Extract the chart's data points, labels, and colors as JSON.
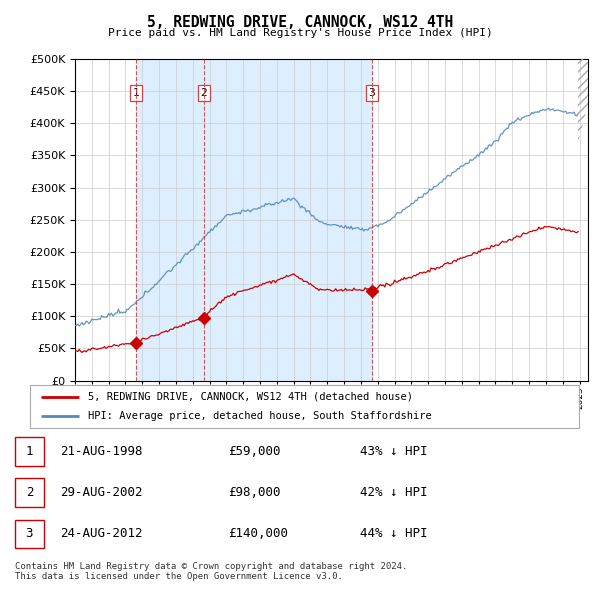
{
  "title": "5, REDWING DRIVE, CANNOCK, WS12 4TH",
  "subtitle": "Price paid vs. HM Land Registry's House Price Index (HPI)",
  "ytick_values": [
    0,
    50000,
    100000,
    150000,
    200000,
    250000,
    300000,
    350000,
    400000,
    450000,
    500000
  ],
  "xlim_start": 1995.0,
  "xlim_end": 2025.5,
  "ylim_min": 0,
  "ylim_max": 500000,
  "sale_dates": [
    1998.645,
    2002.659,
    2012.645
  ],
  "sale_prices": [
    59000,
    98000,
    140000
  ],
  "sale_labels": [
    "1",
    "2",
    "3"
  ],
  "legend_red": "5, REDWING DRIVE, CANNOCK, WS12 4TH (detached house)",
  "legend_blue": "HPI: Average price, detached house, South Staffordshire",
  "table_rows": [
    [
      "1",
      "21-AUG-1998",
      "£59,000",
      "43% ↓ HPI"
    ],
    [
      "2",
      "29-AUG-2002",
      "£98,000",
      "42% ↓ HPI"
    ],
    [
      "3",
      "24-AUG-2012",
      "£140,000",
      "44% ↓ HPI"
    ]
  ],
  "footnote": "Contains HM Land Registry data © Crown copyright and database right 2024.\nThis data is licensed under the Open Government Licence v3.0.",
  "red_color": "#cc0000",
  "blue_color": "#5588bb",
  "shade_color": "#ddeeff",
  "dashed_color": "#cc4444",
  "grid_color": "#cccccc",
  "background_color": "#ffffff"
}
